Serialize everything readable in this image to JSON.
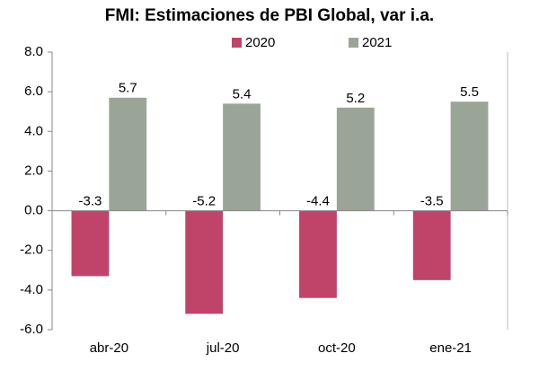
{
  "chart_data": {
    "type": "bar",
    "title": "FMI: Estimaciones de PBI Global, var i.a.",
    "categories": [
      "abr-20",
      "jul-20",
      "oct-20",
      "ene-21"
    ],
    "series": [
      {
        "name": "2020",
        "color": "#c0436a",
        "values": [
          -3.3,
          -5.2,
          -4.4,
          -3.5
        ]
      },
      {
        "name": "2021",
        "color": "#9ba597",
        "values": [
          5.7,
          5.4,
          5.2,
          5.5
        ]
      }
    ],
    "ylim": [
      -6,
      8
    ],
    "yticks": [
      {
        "value": -6,
        "label": "-6.0"
      },
      {
        "value": -4,
        "label": "-4.0"
      },
      {
        "value": -2,
        "label": "-2.0"
      },
      {
        "value": 0,
        "label": "0.0"
      },
      {
        "value": 2,
        "label": "2.0"
      },
      {
        "value": 4,
        "label": "4.0"
      },
      {
        "value": 6,
        "label": "6.0"
      },
      {
        "value": 8,
        "label": "8.0"
      }
    ],
    "grid": false
  }
}
